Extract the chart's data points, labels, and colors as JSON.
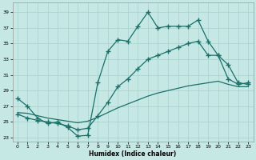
{
  "xlabel": "Humidex (Indice chaleur)",
  "bg_color": "#c5e8e5",
  "grid_color": "#a8d0cc",
  "line_color": "#1a7068",
  "xlim": [
    -0.5,
    23.5
  ],
  "ylim": [
    22.5,
    40.2
  ],
  "yticks": [
    23,
    25,
    27,
    29,
    31,
    33,
    35,
    37,
    39
  ],
  "xticks": [
    0,
    1,
    2,
    3,
    4,
    5,
    6,
    7,
    8,
    9,
    10,
    11,
    12,
    13,
    14,
    15,
    16,
    17,
    18,
    19,
    20,
    21,
    22,
    23
  ],
  "line1_x": [
    0,
    1,
    2,
    3,
    4,
    5,
    6,
    7,
    8,
    9,
    10,
    11,
    12,
    13,
    14,
    15,
    16,
    17,
    18,
    19,
    20,
    21,
    22,
    23
  ],
  "line1_y": [
    28.0,
    27.0,
    25.5,
    24.8,
    25.0,
    24.3,
    23.2,
    23.3,
    30.0,
    34.0,
    35.5,
    35.3,
    37.2,
    39.0,
    37.0,
    37.2,
    37.2,
    37.2,
    38.0,
    35.3,
    33.5,
    32.3,
    30.0,
    29.8
  ],
  "line2_x": [
    0,
    1,
    2,
    3,
    4,
    5,
    6,
    7,
    8,
    9,
    10,
    11,
    12,
    13,
    14,
    15,
    16,
    17,
    18,
    19,
    20,
    21,
    22,
    23
  ],
  "line2_y": [
    26.0,
    25.5,
    25.2,
    25.0,
    24.8,
    24.5,
    24.0,
    24.2,
    25.8,
    27.5,
    29.5,
    30.5,
    31.8,
    33.0,
    33.5,
    34.0,
    34.5,
    35.0,
    35.3,
    33.5,
    33.5,
    30.5,
    29.8,
    30.0
  ],
  "line3_x": [
    0,
    1,
    2,
    3,
    4,
    5,
    6,
    7,
    8,
    9,
    10,
    11,
    12,
    13,
    14,
    15,
    16,
    17,
    18,
    19,
    20,
    21,
    22,
    23
  ],
  "line3_y": [
    26.2,
    26.1,
    25.8,
    25.5,
    25.3,
    25.1,
    24.9,
    25.1,
    25.6,
    26.2,
    26.8,
    27.3,
    27.8,
    28.3,
    28.7,
    29.0,
    29.3,
    29.6,
    29.8,
    30.0,
    30.2,
    29.8,
    29.5,
    29.5
  ]
}
